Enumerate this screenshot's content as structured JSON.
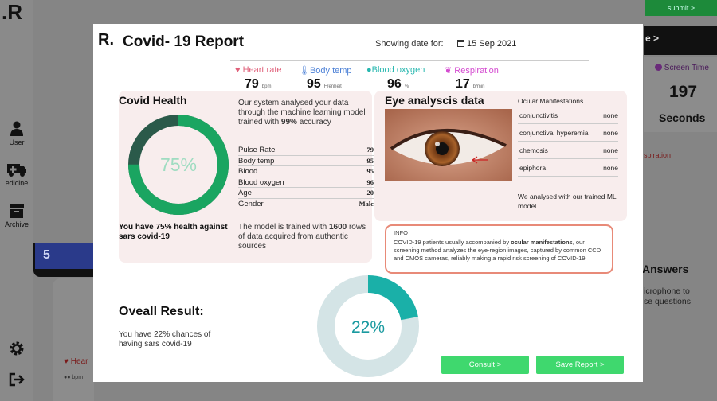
{
  "background": {
    "logo": ".R",
    "nav": [
      {
        "label": "User",
        "icon": "user-icon"
      },
      {
        "label": "edicine",
        "icon": "ambulance-icon"
      },
      {
        "label": "Archive",
        "icon": "archive-icon"
      }
    ],
    "submit_label": "submit >",
    "right_strip": "e >",
    "screen_time": {
      "label": "Screen Time",
      "value": "197",
      "unit": "Seconds"
    },
    "respiration": "spiration",
    "answers_title": "Answers",
    "mic_text": "icrophone to\nse questions",
    "heart_label": "Hear",
    "bpm_label": "bpm",
    "card_badge": "5"
  },
  "modal": {
    "logo": "R.",
    "title": "Covid- 19 Report",
    "showing_label": "Showing date for:",
    "date": "15 Sep 2021",
    "vitals": [
      {
        "label": "Heart rate",
        "value": "79",
        "unit": "bpm",
        "icon": "heart-icon",
        "color": "#e0607a"
      },
      {
        "label": "Body temp",
        "value": "95",
        "unit": "Frenheit",
        "icon": "thermometer-icon",
        "color": "#4a7fd6"
      },
      {
        "label": "Blood oxygen",
        "value": "96",
        "unit": "%",
        "icon": "drop-icon",
        "color": "#29b8b0"
      },
      {
        "label": "Respiration",
        "value": "17",
        "unit": "b/min",
        "icon": "lungs-icon",
        "color": "#d44bd0"
      }
    ],
    "health": {
      "title": "Covid Health",
      "description": "Our system analysed your data through the machine learning model trained with 99% accuracy",
      "accuracy": "99%",
      "donut_value": 75,
      "donut_label": "75%",
      "stats": [
        {
          "label": "Pulse Rate",
          "value": "79"
        },
        {
          "label": "Body temp",
          "value": "95"
        },
        {
          "label": "Blood",
          "value": "95"
        },
        {
          "label": "Blood oxygen",
          "value": "96"
        },
        {
          "label": "Age",
          "value": "20"
        },
        {
          "label": "Gender",
          "value": "Male"
        }
      ],
      "summary": "You have 75% health against sars covid-19",
      "trained_note": "The model is trained with 1600 rows of data acquired from authentic sources"
    },
    "eye": {
      "title": "Eye analyscis data",
      "ocular_title": "Ocular Manifestations",
      "items": [
        {
          "label": "conjunctivitis",
          "value": "none"
        },
        {
          "label": "conjunctival hyperemia",
          "value": "none"
        },
        {
          "label": "chemosis",
          "value": "none"
        },
        {
          "label": "epiphora",
          "value": "none"
        }
      ],
      "note": "We analysed with our trained ML model"
    },
    "info": {
      "label": "INFO",
      "text": "COVID-19 patients usually accompanied by ocular manifestations, our screening method analyzes the eye-region images, captured by common CCD and CMOS cameras, reliably making a rapid risk screening of COVID-19"
    },
    "overall": {
      "title": "Oveall Result:",
      "text": "You have 22% chances of having sars covid-19",
      "donut_value": 22,
      "donut_label": "22%"
    },
    "buttons": {
      "consult": "Consult >",
      "save": "Save Report >"
    }
  },
  "colors": {
    "health_ring": "#1aa561",
    "health_ring_dark": "#2b5a4a",
    "result_ring": "#1ab0a8",
    "result_track": "#d4e4e6",
    "button": "#3fd86e",
    "card_bg": "#f8eded"
  }
}
